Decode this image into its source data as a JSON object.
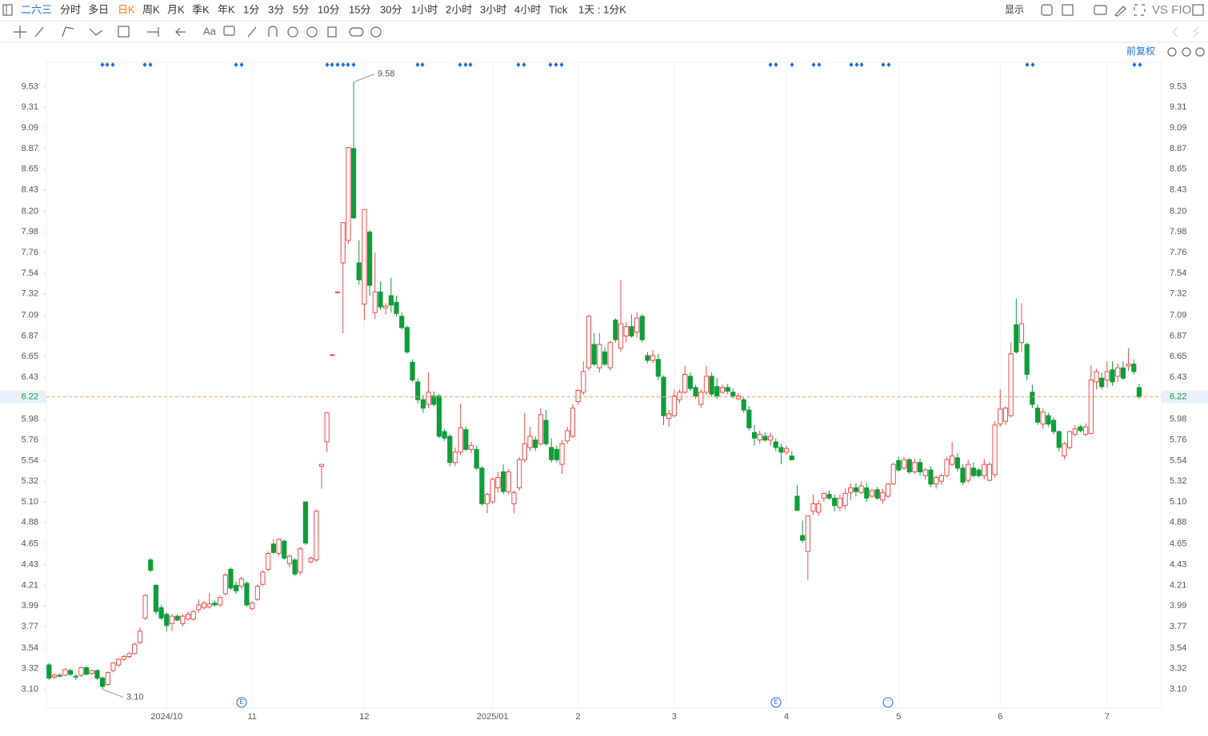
{
  "toolbar": {
    "symbol": "二六三",
    "periods": [
      "分时",
      "多日",
      "日K",
      "周K",
      "月K",
      "季K",
      "年K",
      "1分",
      "3分",
      "5分",
      "10分",
      "15分",
      "30分",
      "1小时",
      "2小时",
      "3小时",
      "4小时",
      "Tick"
    ],
    "active": 2,
    "active_color": "#ff7a00",
    "interval": "1天 : 1分K",
    "display": "显示",
    "compare": "VS FIO",
    "font_tool": "Aa"
  },
  "chart_data": {
    "type": "candlestick",
    "adjustment": "前复权",
    "up_color": "#eb4d4d",
    "down_color": "#0f9d3a",
    "vertical_grid": true,
    "max_label": "9.58",
    "min_label": "3.10",
    "ylim": [
      2.9,
      9.79
    ],
    "yticks": [
      {
        "value": 3.1,
        "label": "3.10"
      },
      3.32,
      3.54,
      3.77,
      3.99,
      4.21,
      4.43,
      4.65,
      4.88,
      {
        "value": 5.1,
        "label": "5.10"
      },
      5.32,
      5.54,
      5.76,
      5.98,
      6.43,
      6.65,
      6.87,
      7.09,
      7.32,
      7.54,
      7.76,
      7.98,
      {
        "value": 8.2,
        "label": "8.20"
      },
      8.43,
      8.65,
      8.87,
      9.09,
      9.31,
      9.53
    ],
    "categories": [
      null,
      null,
      null,
      null,
      null,
      null,
      null,
      null,
      null,
      null,
      null,
      null,
      null,
      null,
      null,
      null,
      null,
      null,
      null,
      null,
      null,
      null,
      "2024/10",
      null,
      null,
      null,
      null,
      null,
      null,
      null,
      null,
      null,
      null,
      null,
      null,
      null,
      null,
      null,
      "11",
      null,
      null,
      null,
      null,
      null,
      null,
      null,
      null,
      null,
      null,
      null,
      null,
      null,
      null,
      null,
      null,
      null,
      null,
      null,
      null,
      "12",
      null,
      null,
      null,
      null,
      null,
      null,
      null,
      null,
      null,
      null,
      null,
      null,
      null,
      null,
      null,
      null,
      null,
      null,
      null,
      null,
      null,
      null,
      null,
      "2025/01",
      null,
      null,
      null,
      null,
      null,
      null,
      null,
      null,
      null,
      null,
      null,
      null,
      null,
      null,
      null,
      "2",
      null,
      null,
      null,
      null,
      null,
      null,
      null,
      null,
      null,
      null,
      null,
      null,
      null,
      null,
      null,
      null,
      null,
      "3",
      null,
      null,
      null,
      null,
      null,
      null,
      null,
      null,
      null,
      null,
      null,
      null,
      null,
      null,
      null,
      null,
      null,
      null,
      null,
      null,
      "4",
      null,
      null,
      null,
      null,
      null,
      null,
      null,
      null,
      null,
      null,
      null,
      null,
      null,
      null,
      null,
      null,
      null,
      null,
      null,
      null,
      "5",
      null,
      null,
      null,
      null,
      null,
      null,
      null,
      null,
      null,
      null,
      null,
      null,
      null,
      null,
      null,
      null,
      null,
      null,
      "6",
      null,
      null,
      null,
      null,
      null,
      null,
      null,
      null,
      null,
      null,
      null,
      null,
      null,
      null,
      null,
      null,
      null,
      null,
      null,
      "7",
      null,
      null,
      null,
      null,
      null,
      null
    ],
    "ohlc": [
      [
        3.36,
        3.38,
        3.2,
        3.22
      ],
      [
        3.23,
        3.27,
        3.21,
        3.25
      ],
      [
        3.25,
        3.27,
        3.23,
        3.24
      ],
      [
        3.25,
        3.33,
        3.24,
        3.31
      ],
      [
        3.3,
        3.32,
        3.24,
        3.26
      ],
      [
        3.24,
        3.26,
        3.2,
        3.23
      ],
      [
        3.25,
        3.34,
        3.23,
        3.33
      ],
      [
        3.33,
        3.35,
        3.25,
        3.26
      ],
      [
        3.27,
        3.31,
        3.25,
        3.3
      ],
      [
        3.3,
        3.31,
        3.2,
        3.22
      ],
      [
        3.22,
        3.24,
        3.1,
        3.13
      ],
      [
        3.15,
        3.29,
        3.14,
        3.28
      ],
      [
        3.3,
        3.39,
        3.28,
        3.38
      ],
      [
        3.36,
        3.43,
        3.34,
        3.42
      ],
      [
        3.42,
        3.47,
        3.4,
        3.45
      ],
      [
        3.45,
        3.5,
        3.43,
        3.48
      ],
      [
        3.48,
        3.6,
        3.47,
        3.58
      ],
      [
        3.6,
        3.76,
        3.58,
        3.72
      ],
      [
        3.86,
        4.12,
        3.84,
        4.1
      ],
      [
        4.48,
        4.5,
        4.35,
        4.37
      ],
      [
        4.21,
        4.22,
        3.9,
        3.93
      ],
      [
        3.97,
        4.0,
        3.84,
        3.86
      ],
      [
        3.9,
        3.92,
        3.72,
        3.78
      ],
      [
        3.8,
        3.9,
        3.72,
        3.88
      ],
      [
        3.88,
        3.9,
        3.82,
        3.84
      ],
      [
        3.8,
        3.9,
        3.77,
        3.88
      ],
      [
        3.85,
        3.93,
        3.83,
        3.9
      ],
      [
        3.85,
        3.95,
        3.83,
        3.93
      ],
      [
        3.95,
        4.06,
        3.92,
        4.0
      ],
      [
        3.97,
        4.04,
        3.95,
        4.02
      ],
      [
        3.98,
        4.13,
        3.96,
        4.01
      ],
      [
        4.02,
        4.05,
        3.98,
        4.0
      ],
      [
        4.0,
        4.1,
        3.98,
        4.08
      ],
      [
        4.12,
        4.34,
        4.1,
        4.32
      ],
      [
        4.38,
        4.4,
        4.16,
        4.18
      ],
      [
        4.21,
        4.25,
        4.12,
        4.15
      ],
      [
        4.2,
        4.3,
        4.17,
        4.28
      ],
      [
        4.23,
        4.25,
        3.98,
        4.0
      ],
      [
        3.96,
        4.04,
        3.94,
        4.02
      ],
      [
        4.06,
        4.22,
        4.04,
        4.2
      ],
      [
        4.22,
        4.37,
        4.2,
        4.35
      ],
      [
        4.38,
        4.57,
        4.36,
        4.55
      ],
      [
        4.65,
        4.7,
        4.54,
        4.56
      ],
      [
        4.55,
        4.71,
        4.52,
        4.7
      ],
      [
        4.68,
        4.7,
        4.48,
        4.5
      ],
      [
        4.44,
        4.54,
        4.4,
        4.52
      ],
      [
        4.48,
        4.5,
        4.31,
        4.33
      ],
      [
        4.35,
        4.62,
        4.32,
        4.6
      ],
      [
        5.1,
        5.1,
        4.64,
        4.66
      ],
      [
        4.46,
        4.52,
        4.44,
        4.5
      ],
      [
        4.48,
        5.02,
        4.46,
        5.0
      ],
      [
        5.48,
        5.5,
        5.24,
        5.5
      ],
      [
        5.74,
        6.06,
        5.63,
        6.05
      ],
      [
        6.67,
        6.67,
        6.67,
        6.67
      ],
      [
        7.34,
        7.34,
        7.34,
        7.34
      ],
      [
        7.65,
        8.08,
        6.9,
        8.08
      ],
      [
        7.89,
        8.88,
        7.85,
        8.88
      ],
      [
        8.87,
        9.58,
        8.12,
        8.13
      ],
      [
        7.65,
        7.89,
        7.42,
        7.47
      ],
      [
        7.21,
        8.22,
        7.04,
        8.22
      ],
      [
        7.98,
        8.0,
        7.3,
        7.41
      ],
      [
        7.12,
        7.76,
        7.05,
        7.34
      ],
      [
        7.34,
        7.45,
        7.15,
        7.18
      ],
      [
        7.17,
        7.22,
        7.1,
        7.19
      ],
      [
        7.3,
        7.49,
        7.12,
        7.2
      ],
      [
        7.23,
        7.3,
        7.08,
        7.11
      ],
      [
        7.08,
        7.12,
        6.94,
        6.96
      ],
      [
        6.96,
        6.98,
        6.68,
        6.7
      ],
      [
        6.59,
        6.62,
        6.38,
        6.4
      ],
      [
        6.38,
        6.42,
        6.15,
        6.19
      ],
      [
        6.19,
        6.24,
        6.05,
        6.1
      ],
      [
        6.14,
        6.48,
        6.1,
        6.27
      ],
      [
        6.23,
        6.28,
        6.12,
        6.14
      ],
      [
        6.23,
        6.25,
        5.78,
        5.8
      ],
      [
        5.85,
        5.88,
        5.75,
        5.78
      ],
      [
        5.8,
        5.82,
        5.48,
        5.52
      ],
      [
        5.52,
        5.68,
        5.48,
        5.63
      ],
      [
        5.63,
        6.15,
        5.6,
        5.89
      ],
      [
        5.87,
        5.9,
        5.64,
        5.66
      ],
      [
        5.66,
        5.74,
        5.62,
        5.7
      ],
      [
        5.66,
        5.7,
        5.44,
        5.46
      ],
      [
        5.46,
        5.48,
        5.06,
        5.08
      ],
      [
        5.08,
        5.2,
        4.98,
        5.18
      ],
      [
        5.1,
        5.36,
        5.08,
        5.34
      ],
      [
        5.25,
        5.42,
        5.2,
        5.36
      ],
      [
        5.42,
        5.5,
        5.18,
        5.21
      ],
      [
        5.21,
        5.45,
        5.18,
        5.42
      ],
      [
        5.08,
        5.22,
        4.98,
        5.2
      ],
      [
        5.25,
        5.58,
        5.22,
        5.55
      ],
      [
        5.55,
        6.05,
        5.52,
        5.72
      ],
      [
        5.68,
        5.9,
        5.64,
        5.8
      ],
      [
        5.76,
        5.8,
        5.64,
        5.68
      ],
      [
        5.72,
        6.1,
        5.7,
        6.03
      ],
      [
        5.97,
        6.08,
        5.7,
        5.72
      ],
      [
        5.68,
        5.78,
        5.52,
        5.55
      ],
      [
        5.66,
        5.7,
        5.52,
        5.55
      ],
      [
        5.5,
        5.76,
        5.4,
        5.72
      ],
      [
        5.75,
        5.9,
        5.72,
        5.86
      ],
      [
        5.8,
        6.14,
        5.78,
        6.1
      ],
      [
        6.17,
        6.3,
        6.14,
        6.29
      ],
      [
        6.27,
        6.6,
        6.24,
        6.49
      ],
      [
        6.53,
        7.1,
        6.5,
        7.08
      ],
      [
        6.78,
        6.9,
        6.55,
        6.57
      ],
      [
        6.53,
        6.9,
        6.48,
        6.78
      ],
      [
        6.7,
        6.75,
        6.55,
        6.57
      ],
      [
        6.53,
        6.82,
        6.5,
        6.8
      ],
      [
        7.04,
        7.06,
        6.8,
        6.83
      ],
      [
        6.74,
        7.47,
        6.7,
        7.0
      ],
      [
        6.87,
        7.02,
        6.8,
        6.97
      ],
      [
        6.97,
        7.1,
        6.85,
        6.87
      ],
      [
        6.91,
        7.12,
        6.85,
        7.06
      ],
      [
        7.08,
        7.1,
        6.8,
        6.83
      ],
      [
        6.66,
        6.7,
        6.58,
        6.61
      ],
      [
        6.61,
        6.72,
        6.58,
        6.66
      ],
      [
        6.62,
        6.68,
        6.4,
        6.44
      ],
      [
        6.43,
        6.45,
        5.92,
        6.02
      ],
      [
        5.99,
        6.08,
        5.9,
        6.04
      ],
      [
        6.02,
        6.3,
        6.0,
        6.23
      ],
      [
        6.19,
        6.3,
        6.15,
        6.27
      ],
      [
        6.27,
        6.55,
        6.25,
        6.46
      ],
      [
        6.44,
        6.48,
        6.28,
        6.31
      ],
      [
        6.32,
        6.35,
        6.2,
        6.23
      ],
      [
        6.14,
        6.3,
        6.1,
        6.27
      ],
      [
        6.27,
        6.55,
        6.24,
        6.44
      ],
      [
        6.44,
        6.48,
        6.22,
        6.25
      ],
      [
        6.33,
        6.42,
        6.2,
        6.23
      ],
      [
        6.27,
        6.35,
        6.25,
        6.32
      ],
      [
        6.32,
        6.36,
        6.25,
        6.28
      ],
      [
        6.27,
        6.31,
        6.2,
        6.23
      ],
      [
        6.2,
        6.26,
        6.18,
        6.23
      ],
      [
        6.19,
        6.22,
        6.05,
        6.08
      ],
      [
        6.08,
        6.12,
        5.86,
        5.89
      ],
      [
        5.84,
        5.92,
        5.7,
        5.78
      ],
      [
        5.76,
        5.86,
        5.72,
        5.82
      ],
      [
        5.8,
        5.84,
        5.74,
        5.76
      ],
      [
        5.76,
        5.84,
        5.7,
        5.8
      ],
      [
        5.74,
        5.78,
        5.64,
        5.68
      ],
      [
        5.68,
        5.72,
        5.5,
        5.63
      ],
      [
        5.63,
        5.7,
        5.6,
        5.67
      ],
      [
        5.59,
        5.64,
        5.54,
        5.55
      ],
      [
        5.16,
        5.28,
        5.0,
        5.01
      ],
      [
        4.74,
        4.9,
        4.66,
        4.69
      ],
      [
        4.57,
        4.95,
        4.27,
        4.95
      ],
      [
        5.0,
        5.18,
        4.96,
        5.08
      ],
      [
        4.99,
        5.12,
        4.95,
        5.08
      ],
      [
        5.14,
        5.2,
        5.1,
        5.19
      ],
      [
        5.18,
        5.22,
        5.12,
        5.14
      ],
      [
        5.14,
        5.18,
        5.0,
        5.06
      ],
      [
        5.04,
        5.18,
        5.0,
        5.14
      ],
      [
        5.06,
        5.24,
        5.02,
        5.19
      ],
      [
        5.2,
        5.3,
        5.12,
        5.25
      ],
      [
        5.25,
        5.3,
        5.16,
        5.21
      ],
      [
        5.2,
        5.32,
        5.18,
        5.27
      ],
      [
        5.25,
        5.3,
        5.1,
        5.14
      ],
      [
        5.16,
        5.24,
        5.14,
        5.22
      ],
      [
        5.23,
        5.26,
        5.12,
        5.14
      ],
      [
        5.12,
        5.24,
        5.08,
        5.2
      ],
      [
        5.16,
        5.3,
        5.14,
        5.29
      ],
      [
        5.29,
        5.52,
        5.28,
        5.5
      ],
      [
        5.54,
        5.58,
        5.42,
        5.44
      ],
      [
        5.46,
        5.58,
        5.44,
        5.55
      ],
      [
        5.55,
        5.57,
        5.4,
        5.42
      ],
      [
        5.42,
        5.56,
        5.4,
        5.52
      ],
      [
        5.52,
        5.56,
        5.38,
        5.42
      ],
      [
        5.38,
        5.46,
        5.34,
        5.44
      ],
      [
        5.44,
        5.48,
        5.26,
        5.29
      ],
      [
        5.29,
        5.38,
        5.24,
        5.36
      ],
      [
        5.32,
        5.4,
        5.28,
        5.38
      ],
      [
        5.38,
        5.58,
        5.36,
        5.55
      ],
      [
        5.5,
        5.74,
        5.48,
        5.59
      ],
      [
        5.57,
        5.62,
        5.42,
        5.46
      ],
      [
        5.46,
        5.5,
        5.28,
        5.31
      ],
      [
        5.33,
        5.55,
        5.3,
        5.5
      ],
      [
        5.46,
        5.52,
        5.36,
        5.38
      ],
      [
        5.44,
        5.46,
        5.36,
        5.38
      ],
      [
        5.38,
        5.56,
        5.34,
        5.5
      ],
      [
        5.33,
        5.52,
        5.32,
        5.5
      ],
      [
        5.39,
        5.96,
        5.36,
        5.92
      ],
      [
        5.93,
        6.3,
        5.9,
        6.09
      ],
      [
        5.96,
        6.12,
        5.92,
        6.1
      ],
      [
        6.02,
        6.8,
        6.0,
        6.68
      ],
      [
        6.99,
        7.27,
        6.68,
        6.7
      ],
      [
        6.8,
        7.22,
        6.7,
        7.0
      ],
      [
        6.78,
        6.8,
        6.4,
        6.46
      ],
      [
        6.27,
        6.35,
        6.1,
        6.14
      ],
      [
        6.1,
        6.14,
        5.92,
        5.95
      ],
      [
        5.93,
        6.1,
        5.88,
        6.06
      ],
      [
        6.02,
        6.05,
        5.9,
        5.93
      ],
      [
        5.97,
        6.0,
        5.82,
        5.85
      ],
      [
        5.85,
        5.86,
        5.64,
        5.68
      ],
      [
        5.59,
        5.74,
        5.55,
        5.72
      ],
      [
        5.68,
        5.86,
        5.66,
        5.85
      ],
      [
        5.82,
        5.92,
        5.8,
        5.88
      ],
      [
        5.9,
        5.92,
        5.84,
        5.86
      ],
      [
        5.82,
        5.94,
        5.8,
        5.9
      ],
      [
        5.83,
        6.56,
        5.82,
        6.4
      ],
      [
        6.38,
        6.52,
        6.3,
        6.49
      ],
      [
        6.42,
        6.48,
        6.3,
        6.33
      ],
      [
        6.4,
        6.6,
        6.32,
        6.49
      ],
      [
        6.51,
        6.6,
        6.34,
        6.38
      ],
      [
        6.44,
        6.58,
        6.38,
        6.53
      ],
      [
        6.53,
        6.6,
        6.4,
        6.42
      ],
      [
        6.55,
        6.74,
        6.5,
        6.57
      ],
      [
        6.57,
        6.62,
        6.46,
        6.49
      ],
      [
        6.32,
        6.36,
        6.2,
        6.22
      ]
    ]
  }
}
